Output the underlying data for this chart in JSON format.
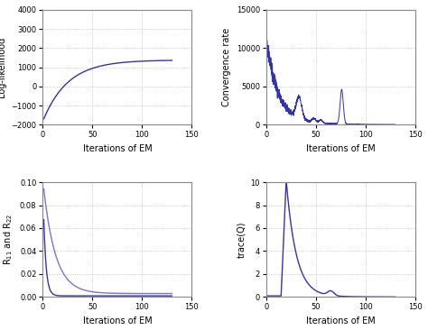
{
  "line_color": "#3333aa",
  "line_color2": "#7777cc",
  "bg_color": "#ffffff",
  "grid_color": "#bbbbbb",
  "xlabel": "Iterations of EM",
  "figsize": [
    4.74,
    3.66
  ],
  "dpi": 100,
  "plot1": {
    "ylabel": "Log-likelihood",
    "xlim": [
      0,
      150
    ],
    "ylim": [
      -2000,
      4000
    ],
    "yticks": [
      -2000,
      -1000,
      0,
      1000,
      2000,
      3000,
      4000
    ],
    "xticks": [
      0,
      50,
      100,
      150
    ]
  },
  "plot2": {
    "ylabel": "Convergence rate",
    "xlim": [
      0,
      150
    ],
    "ylim": [
      0,
      15000
    ],
    "yticks": [
      0,
      5000,
      10000,
      15000
    ],
    "xticks": [
      0,
      50,
      100,
      150
    ]
  },
  "plot3": {
    "ylabel": "R$_{11}$ and R$_{22}$",
    "xlim": [
      0,
      150
    ],
    "ylim": [
      0,
      0.1
    ],
    "yticks": [
      0,
      0.02,
      0.04,
      0.06,
      0.08,
      0.1
    ],
    "xticks": [
      0,
      50,
      100,
      150
    ]
  },
  "plot4": {
    "ylabel": "trace(Q)",
    "xlim": [
      0,
      150
    ],
    "ylim": [
      0,
      10
    ],
    "yticks": [
      0,
      2,
      4,
      6,
      8,
      10
    ],
    "xticks": [
      0,
      50,
      100,
      150
    ]
  }
}
